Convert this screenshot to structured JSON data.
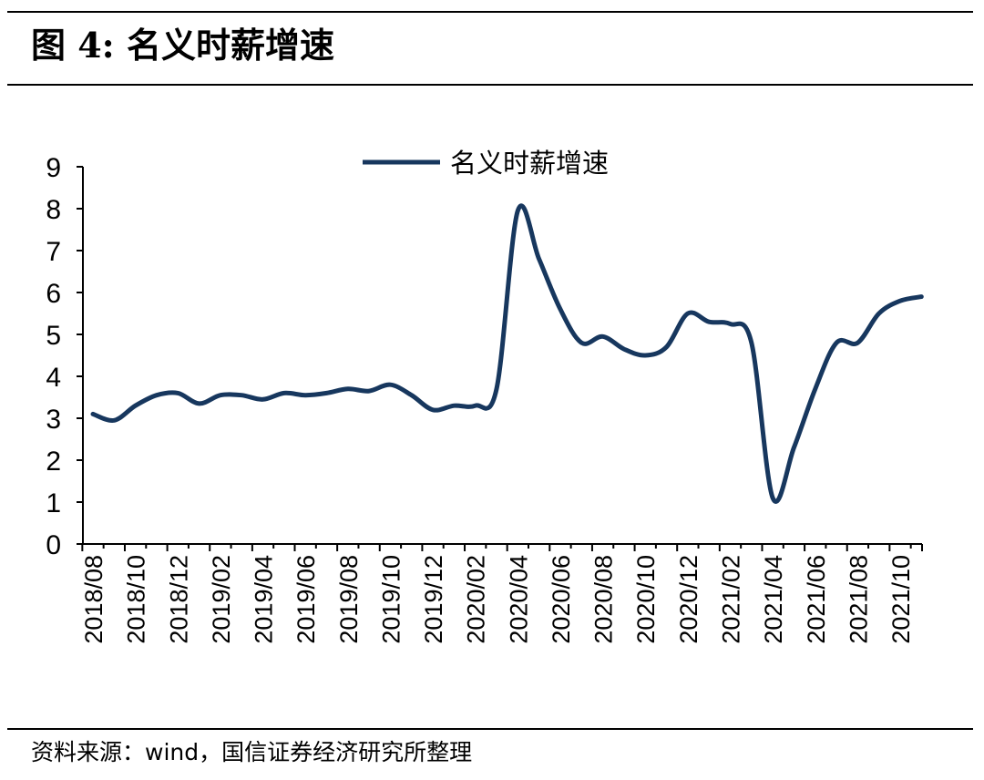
{
  "figure": {
    "label": "图 4:",
    "title": "名义时薪增速",
    "source": "资料来源：wind，国信证券经济研究所整理"
  },
  "chart_data": {
    "type": "line",
    "title": "",
    "xlabel": "",
    "ylabel": "",
    "ylim": [
      0,
      9
    ],
    "yticks": [
      0,
      1,
      2,
      3,
      4,
      5,
      6,
      7,
      8,
      9
    ],
    "xticklabels": [
      "2018/08",
      "2018/10",
      "2018/12",
      "2019/02",
      "2019/04",
      "2019/06",
      "2019/08",
      "2019/10",
      "2019/12",
      "2020/02",
      "2020/04",
      "2020/06",
      "2020/08",
      "2020/10",
      "2020/12",
      "2021/02",
      "2021/04",
      "2021/06",
      "2021/08",
      "2021/10"
    ],
    "x": [
      "2018/08",
      "2018/09",
      "2018/10",
      "2018/11",
      "2018/12",
      "2019/01",
      "2019/02",
      "2019/03",
      "2019/04",
      "2019/05",
      "2019/06",
      "2019/07",
      "2019/08",
      "2019/09",
      "2019/10",
      "2019/11",
      "2019/12",
      "2020/01",
      "2020/02",
      "2020/03",
      "2020/04",
      "2020/05",
      "2020/06",
      "2020/07",
      "2020/08",
      "2020/09",
      "2020/10",
      "2020/11",
      "2020/12",
      "2021/01",
      "2021/02",
      "2021/03",
      "2021/04",
      "2021/05",
      "2021/06",
      "2021/07",
      "2021/08",
      "2021/09",
      "2021/10",
      "2021/11"
    ],
    "series": [
      {
        "name": "名义时薪增速",
        "color": "#17375E",
        "values": [
          3.1,
          2.95,
          3.3,
          3.55,
          3.6,
          3.35,
          3.55,
          3.55,
          3.45,
          3.6,
          3.55,
          3.6,
          3.7,
          3.65,
          3.8,
          3.55,
          3.2,
          3.3,
          3.3,
          3.7,
          7.95,
          6.8,
          5.6,
          4.8,
          4.95,
          4.65,
          4.5,
          4.7,
          5.5,
          5.3,
          5.25,
          4.8,
          1.1,
          2.3,
          3.7,
          4.8,
          4.8,
          5.5,
          5.8,
          5.9
        ]
      }
    ],
    "legend": "top-center",
    "grid": false
  }
}
